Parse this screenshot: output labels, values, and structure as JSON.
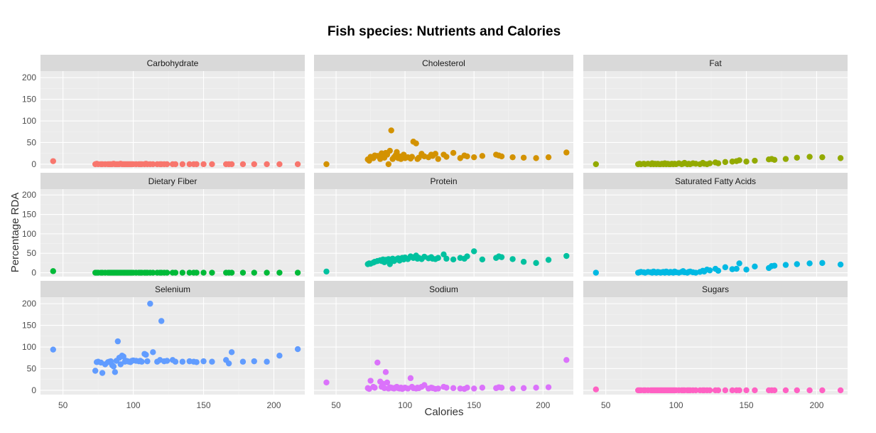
{
  "chart_data": {
    "type": "scatter",
    "title": "Fish species: Nutrients and Calories",
    "xlabel": "Calories",
    "ylabel": "Percentage RDA",
    "xlim": [
      34,
      222
    ],
    "ylim": [
      -10,
      215
    ],
    "x_ticks": [
      50,
      100,
      150,
      200
    ],
    "y_ticks": [
      0,
      50,
      100,
      150,
      200
    ],
    "grid": true,
    "layout": "3x3 facets, shared axes",
    "x": [
      43,
      73,
      74,
      75,
      77,
      78,
      80,
      82,
      83,
      84,
      85,
      86,
      87,
      88,
      89,
      90,
      91,
      92,
      93,
      94,
      95,
      96,
      97,
      98,
      99,
      100,
      102,
      104,
      105,
      106,
      108,
      109,
      110,
      112,
      114,
      117,
      119,
      120,
      122,
      124,
      128,
      130,
      135,
      140,
      143,
      145,
      150,
      156,
      166,
      168,
      170,
      178,
      186,
      195,
      204,
      217
    ],
    "panels": [
      {
        "name": "Carbohydrate",
        "color": "#F8766D",
        "values": [
          7,
          0,
          1,
          0,
          0,
          0,
          0,
          0,
          0,
          0,
          0,
          1,
          0,
          0,
          0,
          0,
          1,
          0,
          0,
          0,
          0,
          0,
          0,
          0,
          0,
          0,
          0,
          0,
          0,
          0,
          0,
          1,
          0,
          0,
          0,
          0,
          0,
          0,
          0,
          0,
          0,
          0,
          0,
          0,
          0,
          0,
          0,
          0,
          0,
          0,
          0,
          0,
          0,
          0,
          0,
          0
        ]
      },
      {
        "name": "Cholesterol",
        "color": "#D39200",
        "values": [
          0,
          11,
          8,
          17,
          14,
          20,
          19,
          12,
          25,
          18,
          15,
          26,
          22,
          0,
          31,
          78,
          12,
          16,
          20,
          28,
          14,
          18,
          12,
          15,
          22,
          14,
          16,
          13,
          17,
          52,
          48,
          12,
          15,
          24,
          18,
          16,
          22,
          19,
          24,
          12,
          22,
          17,
          26,
          14,
          20,
          18,
          16,
          19,
          22,
          20,
          18,
          16,
          15,
          14,
          16,
          27
        ]
      },
      {
        "name": "Fat",
        "color": "#93AA00",
        "values": [
          0,
          0,
          1,
          0,
          1,
          0,
          1,
          0,
          2,
          0,
          1,
          0,
          1,
          0,
          0,
          1,
          0,
          2,
          0,
          1,
          0,
          0,
          1,
          0,
          1,
          0,
          2,
          0,
          1,
          3,
          0,
          1,
          0,
          2,
          1,
          0,
          3,
          1,
          0,
          2,
          4,
          2,
          5,
          6,
          7,
          9,
          6,
          8,
          11,
          12,
          10,
          12,
          15,
          17,
          16,
          14
        ]
      },
      {
        "name": "Dietary Fiber",
        "color": "#00BA38",
        "values": [
          4,
          0,
          0,
          0,
          0,
          0,
          0,
          0,
          0,
          0,
          0,
          0,
          0,
          0,
          0,
          0,
          0,
          0,
          0,
          0,
          0,
          0,
          0,
          0,
          0,
          0,
          0,
          0,
          0,
          0,
          0,
          0,
          0,
          0,
          0,
          0,
          0,
          0,
          0,
          0,
          0,
          0,
          0,
          0,
          0,
          0,
          0,
          0,
          0,
          0,
          0,
          0,
          0,
          0,
          0,
          0
        ]
      },
      {
        "name": "Protein",
        "color": "#00C19F",
        "values": [
          3,
          22,
          24,
          23,
          26,
          28,
          30,
          32,
          30,
          34,
          27,
          33,
          31,
          35,
          22,
          34,
          36,
          30,
          33,
          35,
          37,
          31,
          36,
          38,
          34,
          39,
          35,
          42,
          40,
          38,
          44,
          36,
          38,
          35,
          41,
          37,
          40,
          36,
          35,
          38,
          47,
          36,
          34,
          38,
          36,
          42,
          55,
          34,
          38,
          42,
          40,
          35,
          28,
          25,
          33,
          43
        ]
      },
      {
        "name": "Saturated Fatty Acids",
        "color": "#00B9E3",
        "values": [
          0,
          0,
          1,
          2,
          1,
          0,
          2,
          1,
          0,
          3,
          1,
          0,
          2,
          1,
          0,
          1,
          2,
          0,
          3,
          1,
          0,
          2,
          1,
          0,
          3,
          1,
          0,
          2,
          4,
          1,
          0,
          2,
          3,
          1,
          0,
          2,
          5,
          3,
          8,
          6,
          10,
          5,
          14,
          9,
          10,
          24,
          8,
          16,
          12,
          17,
          18,
          20,
          22,
          24,
          25,
          21
        ]
      },
      {
        "name": "Selenium",
        "color": "#619CFF",
        "values": [
          94,
          45,
          65,
          66,
          64,
          40,
          60,
          65,
          66,
          67,
          58,
          55,
          42,
          68,
          113,
          75,
          60,
          80,
          78,
          66,
          68,
          67,
          66,
          65,
          68,
          69,
          68,
          67,
          68,
          66,
          84,
          82,
          67,
          200,
          88,
          66,
          70,
          160,
          67,
          68,
          70,
          66,
          66,
          67,
          66,
          65,
          67,
          66,
          70,
          62,
          88,
          66,
          67,
          66,
          80,
          95
        ]
      },
      {
        "name": "Sodium",
        "color": "#DB72FB",
        "values": [
          18,
          5,
          3,
          22,
          8,
          6,
          64,
          20,
          8,
          15,
          5,
          42,
          18,
          4,
          7,
          6,
          5,
          4,
          6,
          8,
          5,
          4,
          6,
          3,
          5,
          6,
          4,
          28,
          8,
          5,
          4,
          6,
          5,
          8,
          12,
          4,
          6,
          5,
          3,
          4,
          8,
          6,
          5,
          4,
          3,
          6,
          4,
          6,
          5,
          7,
          6,
          4,
          5,
          6,
          7,
          70
        ]
      },
      {
        "name": "Sugars",
        "color": "#FF61C3",
        "values": [
          2,
          0,
          0,
          0,
          0,
          0,
          0,
          0,
          0,
          0,
          0,
          0,
          0,
          0,
          0,
          0,
          0,
          0,
          0,
          0,
          0,
          0,
          0,
          0,
          0,
          0,
          0,
          0,
          0,
          0,
          0,
          0,
          0,
          0,
          0,
          0,
          0,
          0,
          0,
          0,
          0,
          0,
          0,
          0,
          0,
          0,
          0,
          0,
          0,
          0,
          0,
          0,
          0,
          0,
          0,
          0
        ]
      }
    ]
  }
}
